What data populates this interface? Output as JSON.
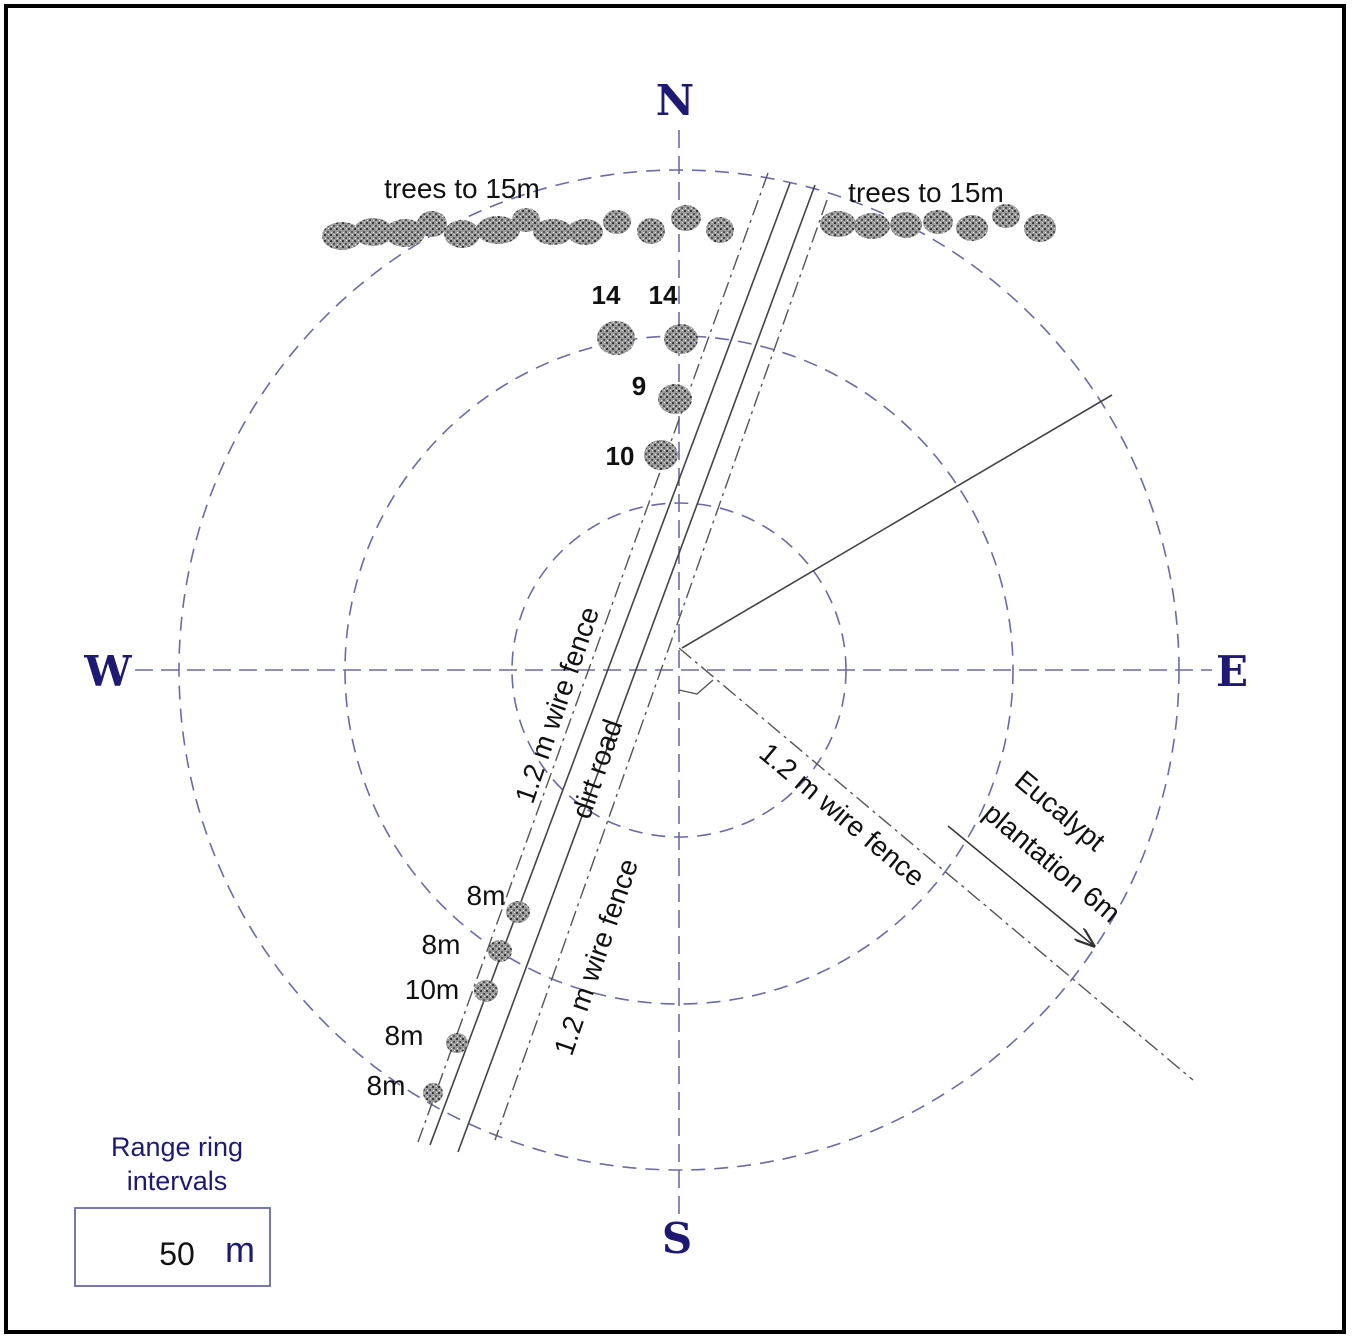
{
  "compass": {
    "north": "N",
    "south": "S",
    "east": "E",
    "west": "W"
  },
  "labels": {
    "trees_left": "trees to 15m",
    "trees_right": "trees to 15m",
    "tree_heights_north": [
      "14",
      "14",
      "9",
      "10"
    ],
    "tree_heights_south": [
      "8m",
      "8m",
      "10m",
      "8m",
      "8m"
    ],
    "fence_west": "1.2 m wire fence",
    "road": "dirt road",
    "fence_east": "1.2 m wire fence",
    "fence_southeast": "1.2 m wire fence",
    "plantation_line1": "Eucalypt",
    "plantation_line2": "plantation 6m"
  },
  "legend": {
    "title_line1": "Range ring",
    "title_line2": "intervals",
    "value": "50",
    "unit": "m"
  },
  "colors": {
    "accent": "#1e1a73",
    "ring": "#6a6aa8",
    "tree": "#7a7a7a"
  }
}
